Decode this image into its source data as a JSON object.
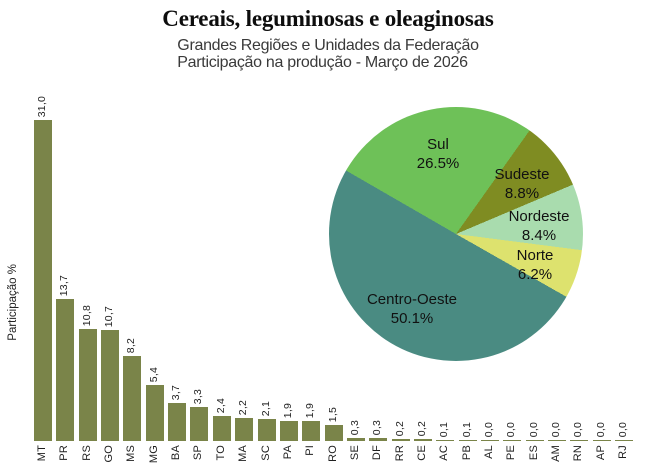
{
  "header": {
    "title": "Cereais, leguminosas e oleaginosas",
    "subtitle_line1": "Grandes Regiões e Unidades da Federação",
    "subtitle_line2": "Participação na produção - Março de 2026"
  },
  "chart_data": [
    {
      "type": "bar",
      "title": "",
      "xlabel": "",
      "ylabel": "Participação %",
      "ylim": [
        0,
        31
      ],
      "grid": false,
      "legend": "none",
      "categories": [
        "MT",
        "PR",
        "RS",
        "GO",
        "MS",
        "MG",
        "BA",
        "SP",
        "TO",
        "MA",
        "SC",
        "PA",
        "PI",
        "RO",
        "SE",
        "DF",
        "RR",
        "CE",
        "AC",
        "PB",
        "AL",
        "PE",
        "ES",
        "AM",
        "RN",
        "AP",
        "RJ"
      ],
      "values": [
        31.0,
        13.7,
        10.8,
        10.7,
        8.2,
        5.4,
        3.7,
        3.3,
        2.4,
        2.2,
        2.1,
        1.9,
        1.9,
        1.5,
        0.3,
        0.3,
        0.2,
        0.2,
        0.1,
        0.1,
        0.0,
        0.0,
        0.0,
        0.0,
        0.0,
        0.0,
        0.0
      ],
      "value_labels": [
        "31,0",
        "13,7",
        "10,8",
        "10,7",
        "8,2",
        "5,4",
        "3,7",
        "3,3",
        "2,4",
        "2,2",
        "2,1",
        "1,9",
        "1,9",
        "1,5",
        "0,3",
        "0,3",
        "0,2",
        "0,2",
        "0,1",
        "0,1",
        "0,0",
        "0,0",
        "0,0",
        "0,0",
        "0,0",
        "0,0",
        "0,0"
      ],
      "bar_color": "#7a8449"
    },
    {
      "type": "pie",
      "title": "",
      "start_angle_deg": 300,
      "direction": "clockwise",
      "legend": "labels-on-chart",
      "slices": [
        {
          "label": "Sul",
          "value": 26.5,
          "display": "26.5%",
          "color": "#6ec158"
        },
        {
          "label": "Sudeste",
          "value": 8.8,
          "display": "8.8%",
          "color": "#7f8c22"
        },
        {
          "label": "Nordeste",
          "value": 8.4,
          "display": "8.4%",
          "color": "#a9dcae"
        },
        {
          "label": "Norte",
          "value": 6.2,
          "display": "6.2%",
          "color": "#dde26e"
        },
        {
          "label": "Centro-Oeste",
          "value": 50.1,
          "display": "50.1%",
          "color": "#4a8b82"
        }
      ]
    }
  ]
}
